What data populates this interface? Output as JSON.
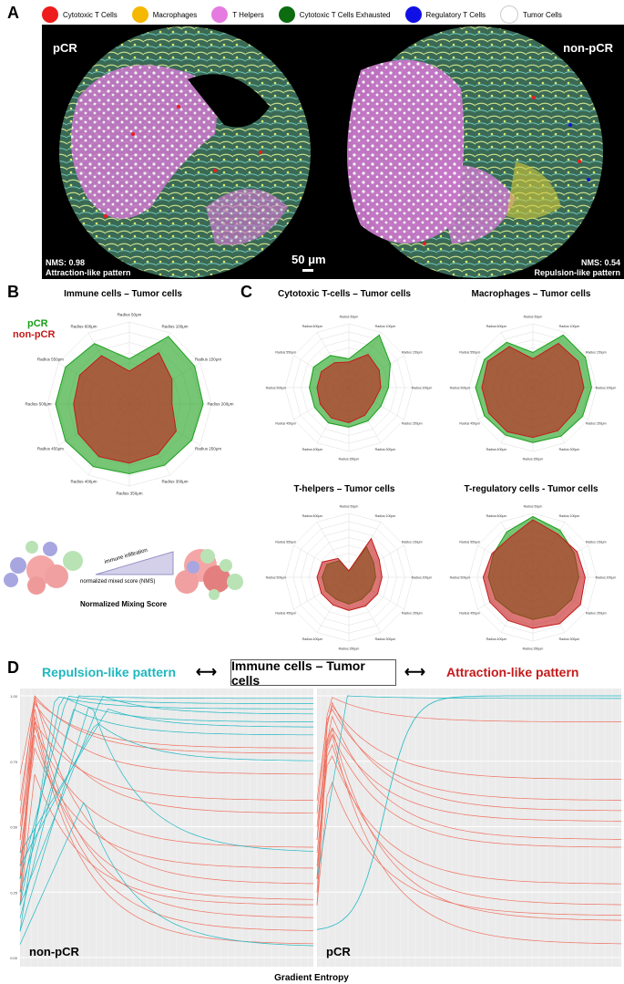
{
  "panel_letters": {
    "a": "A",
    "b": "B",
    "c": "C",
    "d": "D"
  },
  "legend": [
    {
      "label": "Cytotoxic T Cells",
      "color": "#ee1c1c"
    },
    {
      "label": "Macrophages",
      "color": "#f5b800"
    },
    {
      "label": "T Helpers",
      "color": "#e57be0"
    },
    {
      "label": "Cytotoxic T Cells Exhausted",
      "color": "#0d6b10"
    },
    {
      "label": "Regulatory T Cells",
      "color": "#1010e6"
    },
    {
      "label": "Tumor Cells",
      "color": "#ffffff"
    }
  ],
  "panel_a": {
    "left_label": "pCR",
    "right_label": "non-pCR",
    "left_nms": "NMS: 0.98",
    "left_pattern": "Attraction-like pattern",
    "right_nms": "NMS: 0.54",
    "right_pattern": "Repulsion-like pattern",
    "scale_bar": "50 μm"
  },
  "panel_b": {
    "title": "Immune cells – Tumor cells",
    "legend_pcr": "pCR",
    "legend_nonpcr": "non-pCR",
    "schema_arrow": "immune infiltration",
    "schema_axis": "normalized mixed score (NMS)",
    "schema_title": "Normalized Mixing Score"
  },
  "panel_c_titles": [
    "Cytotoxic T-cells – Tumor cells",
    "Macrophages – Tumor cells",
    "T-helpers – Tumor cells",
    "T-regulatory cells - Tumor cells"
  ],
  "panel_d": {
    "left_pattern": "Repulsion-like pattern",
    "center_title": "Immune cells – Tumor cells",
    "right_pattern": "Attraction-like pattern",
    "left_facet": "non-pCR",
    "right_facet": "pCR",
    "xlabel": "Gradient Entropy",
    "yticks": [
      "1.00",
      "0.75",
      "0.50",
      "0.25",
      "0.00"
    ]
  },
  "colors": {
    "pcr": "#1aa01a",
    "nonpcr": "#c41a1a",
    "repulsion": "#1fb8bf",
    "attraction": "#c41a1a",
    "line_red": "#f0705f",
    "line_cyan": "#20b9c4"
  },
  "chart_data": [
    {
      "type": "radar",
      "title": "Immune cells – Tumor cells",
      "axes": [
        "Radius 50μm",
        "Radius 100μm",
        "Radius 150μm",
        "Radius 200μm",
        "Radius 250μm",
        "Radius 300μm",
        "Radius 350μm",
        "Radius 400μm",
        "Radius 450μm",
        "Radius 500μm",
        "Radius 550μm",
        "Radius 600μm"
      ],
      "series": [
        {
          "name": "pCR",
          "values": [
            0.55,
            0.95,
            0.92,
            0.9,
            0.88,
            0.86,
            0.85,
            0.88,
            0.9,
            0.9,
            0.9,
            0.85
          ]
        },
        {
          "name": "non-pCR",
          "values": [
            0.4,
            0.72,
            0.6,
            0.52,
            0.66,
            0.7,
            0.72,
            0.74,
            0.72,
            0.68,
            0.7,
            0.68
          ]
        }
      ]
    },
    {
      "type": "radar",
      "title": "Cytotoxic T-cells – Tumor cells",
      "series": [
        {
          "name": "pCR",
          "values": [
            0.45,
            0.95,
            0.75,
            0.62,
            0.58,
            0.6,
            0.62,
            0.64,
            0.62,
            0.62,
            0.64,
            0.58
          ]
        },
        {
          "name": "non-pCR",
          "values": [
            0.4,
            0.6,
            0.55,
            0.5,
            0.45,
            0.5,
            0.55,
            0.55,
            0.52,
            0.5,
            0.5,
            0.45
          ]
        }
      ]
    },
    {
      "type": "radar",
      "title": "Macrophages – Tumor cells",
      "series": [
        {
          "name": "pCR",
          "values": [
            0.55,
            0.95,
            0.95,
            0.92,
            0.9,
            0.88,
            0.86,
            0.86,
            0.88,
            0.9,
            0.88,
            0.82
          ]
        },
        {
          "name": "non-pCR",
          "values": [
            0.45,
            0.8,
            0.82,
            0.8,
            0.76,
            0.78,
            0.78,
            0.8,
            0.8,
            0.8,
            0.82,
            0.74
          ]
        }
      ]
    },
    {
      "type": "radar",
      "title": "T-helpers – Tumor cells",
      "series": [
        {
          "name": "pCR",
          "values": [
            0.1,
            0.55,
            0.45,
            0.42,
            0.4,
            0.4,
            0.42,
            0.4,
            0.42,
            0.42,
            0.4,
            0.3
          ]
        },
        {
          "name": "non-pCR",
          "values": [
            0.1,
            0.7,
            0.55,
            0.52,
            0.52,
            0.52,
            0.52,
            0.5,
            0.5,
            0.5,
            0.48,
            0.34
          ]
        }
      ]
    },
    {
      "type": "radar",
      "title": "T-regulatory cells - Tumor cells",
      "series": [
        {
          "name": "pCR",
          "values": [
            0.95,
            0.85,
            0.75,
            0.72,
            0.7,
            0.68,
            0.66,
            0.64,
            0.68,
            0.7,
            0.72,
            0.82
          ]
        },
        {
          "name": "non-pCR",
          "values": [
            0.9,
            0.78,
            0.8,
            0.82,
            0.86,
            0.84,
            0.8,
            0.78,
            0.78,
            0.78,
            0.74,
            0.72
          ]
        }
      ]
    },
    {
      "type": "line",
      "facets": [
        "non-pCR",
        "pCR"
      ],
      "xlabel": "Gradient Entropy",
      "ylim": [
        0,
        1
      ],
      "yticks": [
        0,
        0.25,
        0.5,
        0.75,
        1.0
      ]
    }
  ]
}
